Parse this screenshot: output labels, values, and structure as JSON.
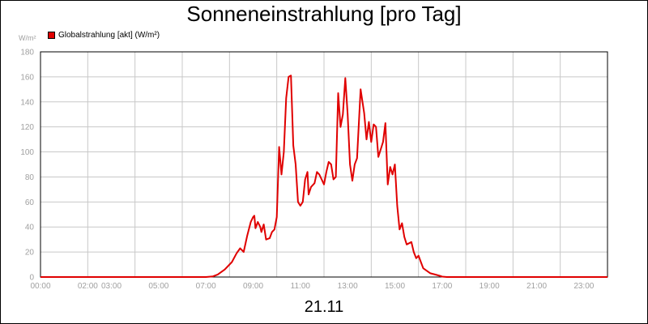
{
  "chart_data": {
    "type": "line",
    "title": "Sonneneinstrahlung [pro Tag]",
    "ylabel": "W/m²",
    "xlabel": "21.11",
    "legend": "top-left",
    "grid": true,
    "ylim": [
      0,
      180
    ],
    "xlim_hours": [
      0,
      24
    ],
    "y_ticks": [
      0,
      20,
      40,
      60,
      80,
      100,
      120,
      140,
      160,
      180
    ],
    "x_ticks": [
      {
        "h": 0,
        "label": "00:00"
      },
      {
        "h": 2,
        "label": "02:00"
      },
      {
        "h": 3,
        "label": "03:00"
      },
      {
        "h": 5,
        "label": "05:00"
      },
      {
        "h": 7,
        "label": "07:00"
      },
      {
        "h": 9,
        "label": "09:00"
      },
      {
        "h": 11,
        "label": "11:00"
      },
      {
        "h": 13,
        "label": "13:00"
      },
      {
        "h": 15,
        "label": "15:00"
      },
      {
        "h": 17,
        "label": "17:00"
      },
      {
        "h": 19,
        "label": "19:00"
      },
      {
        "h": 21,
        "label": "21:00"
      },
      {
        "h": 23,
        "label": "23:00"
      }
    ],
    "series": [
      {
        "name": "Globalstrahlung [akt] (W/m²)",
        "color": "#e00000",
        "points": [
          [
            0,
            0
          ],
          [
            7.0,
            0
          ],
          [
            7.3,
            0.5
          ],
          [
            7.5,
            2
          ],
          [
            7.8,
            6
          ],
          [
            8.1,
            12
          ],
          [
            8.3,
            19
          ],
          [
            8.45,
            23
          ],
          [
            8.6,
            20
          ],
          [
            8.75,
            33
          ],
          [
            8.9,
            44
          ],
          [
            9.0,
            48
          ],
          [
            9.05,
            49
          ],
          [
            9.1,
            39
          ],
          [
            9.2,
            44
          ],
          [
            9.3,
            40
          ],
          [
            9.35,
            36
          ],
          [
            9.45,
            42
          ],
          [
            9.55,
            30
          ],
          [
            9.7,
            31
          ],
          [
            9.8,
            36
          ],
          [
            9.9,
            38
          ],
          [
            10.0,
            48
          ],
          [
            10.1,
            104
          ],
          [
            10.2,
            82
          ],
          [
            10.3,
            100
          ],
          [
            10.4,
            143
          ],
          [
            10.5,
            160
          ],
          [
            10.6,
            161
          ],
          [
            10.7,
            105
          ],
          [
            10.8,
            90
          ],
          [
            10.9,
            60
          ],
          [
            11.0,
            57
          ],
          [
            11.1,
            60
          ],
          [
            11.2,
            78
          ],
          [
            11.3,
            84
          ],
          [
            11.35,
            66
          ],
          [
            11.45,
            72
          ],
          [
            11.6,
            75
          ],
          [
            11.7,
            84
          ],
          [
            11.8,
            82
          ],
          [
            11.9,
            78
          ],
          [
            12.0,
            74
          ],
          [
            12.1,
            84
          ],
          [
            12.2,
            92
          ],
          [
            12.3,
            90
          ],
          [
            12.4,
            78
          ],
          [
            12.5,
            80
          ],
          [
            12.6,
            147
          ],
          [
            12.7,
            120
          ],
          [
            12.8,
            130
          ],
          [
            12.9,
            159
          ],
          [
            13.0,
            130
          ],
          [
            13.1,
            90
          ],
          [
            13.2,
            77
          ],
          [
            13.3,
            90
          ],
          [
            13.4,
            95
          ],
          [
            13.55,
            150
          ],
          [
            13.7,
            131
          ],
          [
            13.8,
            110
          ],
          [
            13.9,
            124
          ],
          [
            14.0,
            108
          ],
          [
            14.1,
            122
          ],
          [
            14.2,
            120
          ],
          [
            14.3,
            96
          ],
          [
            14.4,
            102
          ],
          [
            14.5,
            108
          ],
          [
            14.6,
            123
          ],
          [
            14.7,
            74
          ],
          [
            14.8,
            88
          ],
          [
            14.9,
            82
          ],
          [
            15.0,
            90
          ],
          [
            15.1,
            57
          ],
          [
            15.2,
            38
          ],
          [
            15.3,
            43
          ],
          [
            15.4,
            32
          ],
          [
            15.5,
            26
          ],
          [
            15.6,
            27
          ],
          [
            15.7,
            28
          ],
          [
            15.8,
            20
          ],
          [
            15.9,
            15
          ],
          [
            16.0,
            17
          ],
          [
            16.1,
            12
          ],
          [
            16.2,
            7
          ],
          [
            16.35,
            5
          ],
          [
            16.5,
            3
          ],
          [
            16.7,
            2
          ],
          [
            16.9,
            1
          ],
          [
            17.0,
            0.3
          ],
          [
            17.2,
            0
          ],
          [
            24,
            0
          ]
        ]
      }
    ]
  }
}
